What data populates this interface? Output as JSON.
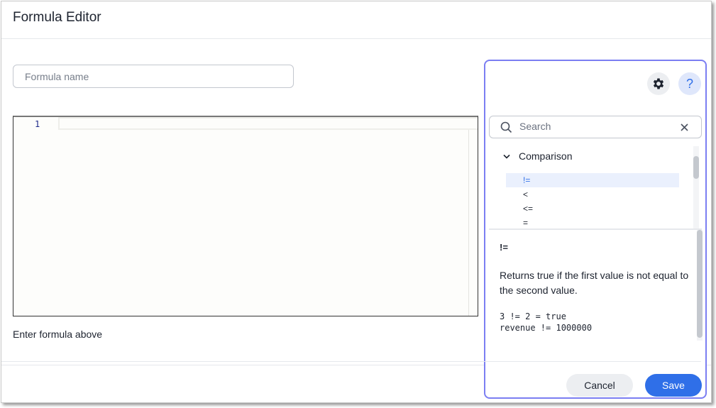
{
  "window": {
    "title": "Formula Editor"
  },
  "form": {
    "name_placeholder": "Formula name",
    "line_number": "1",
    "hint": "Enter formula above"
  },
  "panel": {
    "settings_icon": "gear-icon",
    "help_icon": "question-icon",
    "help_label": "?",
    "search_placeholder": "Search",
    "category": "Comparison",
    "items": [
      "!=",
      "<",
      "<=",
      "="
    ],
    "selected_item": "!=",
    "detail": {
      "name": "!=",
      "description": "Returns true if the first value is not equal to the second value.",
      "examples": "3 != 2 = true\nrevenue != 1000000"
    },
    "cancel_label": "Cancel",
    "save_label": "Save"
  },
  "colors": {
    "accent": "#2f6fe8",
    "panel_border": "#7b7ef2"
  }
}
